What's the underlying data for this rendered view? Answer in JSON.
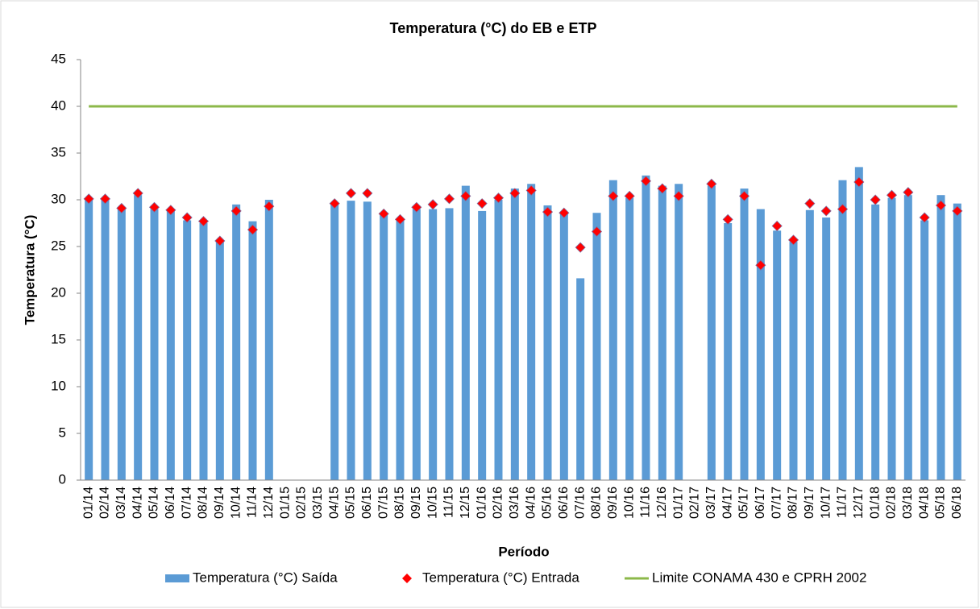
{
  "chart_data": {
    "type": "bar",
    "title": "Temperatura (°C) do EB e ETP",
    "x_label": "Período",
    "y_label": "Temperatura (°C)",
    "categories": [
      "01/14",
      "02/14",
      "03/14",
      "04/14",
      "05/14",
      "06/14",
      "07/14",
      "08/14",
      "09/14",
      "10/14",
      "11/14",
      "12/14",
      "01/15",
      "02/15",
      "03/15",
      "04/15",
      "05/15",
      "06/15",
      "07/15",
      "08/15",
      "09/15",
      "10/15",
      "11/15",
      "12/15",
      "01/16",
      "02/16",
      "03/16",
      "04/16",
      "05/16",
      "06/16",
      "07/16",
      "08/16",
      "09/16",
      "10/16",
      "11/16",
      "12/16",
      "01/17",
      "02/17",
      "03/17",
      "04/17",
      "05/17",
      "06/17",
      "07/17",
      "08/17",
      "09/17",
      "10/17",
      "11/17",
      "12/17",
      "01/18",
      "02/18",
      "03/18",
      "04/18",
      "05/18",
      "06/18"
    ],
    "series": [
      {
        "name": "Temperatura (°C) Saída",
        "type": "bar",
        "color": "#5b9bd5",
        "values": [
          30.0,
          30.0,
          29.0,
          30.5,
          29.0,
          28.8,
          27.8,
          27.5,
          25.5,
          29.5,
          27.7,
          30.0,
          null,
          null,
          null,
          29.5,
          29.9,
          29.8,
          28.5,
          27.8,
          29.0,
          29.0,
          29.1,
          31.5,
          28.8,
          30.0,
          31.2,
          31.7,
          29.4,
          28.5,
          21.6,
          28.6,
          32.1,
          30.2,
          32.6,
          31.5,
          31.7,
          null,
          31.5,
          27.5,
          31.2,
          29.0,
          26.7,
          25.5,
          28.9,
          28.1,
          32.1,
          33.5,
          29.5,
          30.2,
          30.5,
          27.8,
          30.5,
          29.6
        ]
      },
      {
        "name": "Temperatura (°C) Entrada",
        "type": "scatter",
        "color": "#ff0000",
        "values": [
          30.1,
          30.1,
          29.1,
          30.7,
          29.2,
          28.9,
          28.1,
          27.7,
          25.6,
          28.8,
          26.8,
          29.3,
          null,
          null,
          null,
          29.6,
          30.7,
          30.7,
          28.5,
          27.9,
          29.2,
          29.5,
          30.1,
          30.4,
          29.6,
          30.2,
          30.7,
          31.0,
          28.7,
          28.6,
          24.9,
          26.6,
          30.4,
          30.4,
          32.0,
          31.2,
          30.4,
          null,
          31.7,
          27.9,
          30.4,
          23.0,
          27.2,
          25.7,
          29.6,
          28.8,
          29.0,
          31.9,
          30.0,
          30.5,
          30.8,
          28.1,
          29.4,
          28.8
        ]
      },
      {
        "name": "Limite CONAMA 430 e CPRH 2002",
        "type": "line",
        "color": "#8cb84a",
        "values": [
          40,
          40,
          40,
          40,
          40,
          40,
          40,
          40,
          40,
          40,
          40,
          40,
          40,
          40,
          40,
          40,
          40,
          40,
          40,
          40,
          40,
          40,
          40,
          40,
          40,
          40,
          40,
          40,
          40,
          40,
          40,
          40,
          40,
          40,
          40,
          40,
          40,
          40,
          40,
          40,
          40,
          40,
          40,
          40,
          40,
          40,
          40,
          40,
          40,
          40,
          40,
          40,
          40,
          40
        ]
      }
    ],
    "ylim": [
      0,
      45
    ],
    "yticks": [
      0,
      5,
      10,
      15,
      20,
      25,
      30,
      35,
      40,
      45
    ],
    "grid": false,
    "legend": "bottom"
  }
}
